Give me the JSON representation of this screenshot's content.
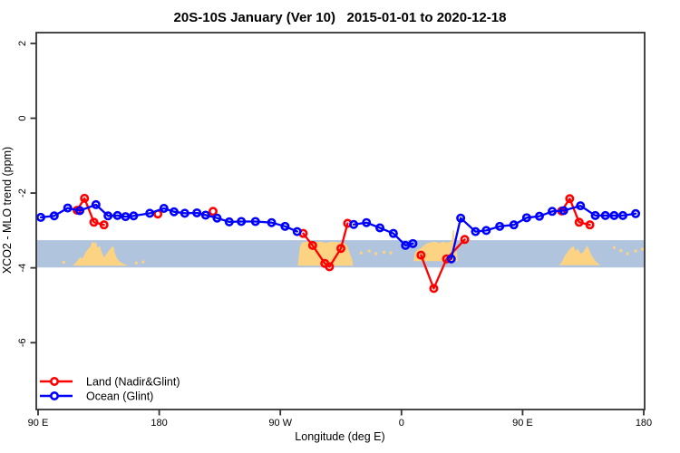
{
  "title": "20S-10S January (Ver 10)   2015-01-01 to 2020-12-18",
  "legend": {
    "items": [
      {
        "label": "Land (Nadir&Glint)",
        "color": "#ff0000"
      },
      {
        "label": "Ocean (Glint)",
        "color": "#0000ff"
      }
    ]
  },
  "colors": {
    "land": "#ff0000",
    "ocean": "#0000ff",
    "band": "#b0c4de",
    "density": "#fbd382",
    "axis": "#333333"
  },
  "chart_data": {
    "type": "line",
    "title": "20S-10S January (Ver 10)   2015-01-01 to 2020-12-18",
    "xlabel": "Longitude (deg E)",
    "ylabel": "XCO2 - MLO trend (ppm)",
    "x_axis": {
      "note": "longitude axis runs 90E eastward around the globe; 90E-180 segment repeated at right edge",
      "range": [
        90,
        540
      ],
      "ticks": [
        90,
        180,
        270,
        360,
        450,
        540
      ],
      "tick_labels": [
        "90 E",
        "180",
        "90 W",
        "0",
        "90 E",
        "180"
      ]
    },
    "y_axis": {
      "range": [
        2.3,
        -7.8
      ],
      "ticks": [
        2,
        0,
        -2,
        -4,
        -6
      ],
      "tick_labels": [
        "2",
        "0",
        "-2",
        "-4",
        "-6"
      ]
    },
    "band": {
      "y_top": -3.26,
      "y_bottom": -3.99,
      "color": "#b0c4de"
    },
    "density_regions": [
      [
        [
          116,
          -3.94
        ],
        [
          119,
          -3.82
        ],
        [
          121,
          -3.72
        ],
        [
          123,
          -3.75
        ],
        [
          125,
          -3.6
        ],
        [
          127,
          -3.5
        ],
        [
          129,
          -3.42
        ],
        [
          130,
          -3.3
        ],
        [
          132,
          -3.34
        ],
        [
          133,
          -3.3
        ],
        [
          134,
          -3.45
        ],
        [
          136,
          -3.42
        ],
        [
          137,
          -3.56
        ],
        [
          139,
          -3.72
        ],
        [
          141,
          -3.62
        ],
        [
          143,
          -3.52
        ],
        [
          145,
          -3.44
        ],
        [
          146,
          -3.42
        ],
        [
          147,
          -3.6
        ],
        [
          149,
          -3.77
        ],
        [
          151,
          -3.84
        ],
        [
          154,
          -3.9
        ],
        [
          157,
          -3.94
        ]
      ],
      [
        [
          283,
          -3.94
        ],
        [
          284.5,
          -3.45
        ],
        [
          286,
          -3.32
        ],
        [
          289,
          -3.3
        ],
        [
          295,
          -3.31
        ],
        [
          300,
          -3.3
        ],
        [
          304,
          -3.33
        ],
        [
          308,
          -3.3
        ],
        [
          313,
          -3.31
        ],
        [
          317,
          -3.33
        ],
        [
          319.5,
          -3.4
        ],
        [
          321.5,
          -3.6
        ],
        [
          323.5,
          -3.8
        ],
        [
          324,
          -3.94
        ]
      ],
      [
        [
          369,
          -3.82
        ],
        [
          370,
          -3.6
        ],
        [
          372,
          -3.52
        ],
        [
          374,
          -3.48
        ],
        [
          376,
          -3.42
        ],
        [
          378,
          -3.36
        ],
        [
          381,
          -3.32
        ],
        [
          385,
          -3.3
        ],
        [
          388,
          -3.34
        ],
        [
          391,
          -3.3
        ],
        [
          394,
          -3.33
        ],
        [
          396,
          -3.3
        ],
        [
          397.5,
          -3.28
        ],
        [
          398,
          -3.0
        ],
        [
          398.8,
          -2.97
        ],
        [
          399.5,
          -3.25
        ],
        [
          400.5,
          -3.5
        ],
        [
          401.5,
          -3.68
        ],
        [
          402,
          -3.82
        ]
      ],
      [
        [
          477,
          -3.93
        ],
        [
          479,
          -3.85
        ],
        [
          481,
          -3.7
        ],
        [
          483,
          -3.6
        ],
        [
          485,
          -3.5
        ],
        [
          486.5,
          -3.45
        ],
        [
          488,
          -3.42
        ],
        [
          489.5,
          -3.55
        ],
        [
          491,
          -3.48
        ],
        [
          493,
          -3.62
        ],
        [
          495,
          -3.58
        ],
        [
          497,
          -3.46
        ],
        [
          498,
          -3.4
        ],
        [
          499.5,
          -3.52
        ],
        [
          501,
          -3.65
        ],
        [
          503,
          -3.76
        ],
        [
          505,
          -3.85
        ],
        [
          508,
          -3.93
        ]
      ]
    ],
    "density_flecks": [
      [
        109,
        -3.85
      ],
      [
        163,
        -3.87
      ],
      [
        168,
        -3.84
      ],
      [
        330,
        -3.6
      ],
      [
        336,
        -3.55
      ],
      [
        341,
        -3.62
      ],
      [
        347,
        -3.58
      ],
      [
        352,
        -3.6
      ],
      [
        388,
        -3.45
      ],
      [
        518,
        -3.46
      ],
      [
        523,
        -3.54
      ],
      [
        528,
        -3.62
      ],
      [
        534,
        -3.55
      ],
      [
        539,
        -3.5
      ]
    ],
    "series": [
      {
        "name": "Land (Nadir&Glint)",
        "color": "#ff0000",
        "segments": [
          [
            [
              119,
              -2.46
            ],
            [
              124.5,
              -2.14
            ],
            [
              131.5,
              -2.78
            ],
            [
              139,
              -2.85
            ]
          ],
          [
            [
              179,
              -2.56
            ]
          ],
          [
            [
              220,
              -2.49
            ]
          ],
          [
            [
              287,
              -3.08
            ],
            [
              294,
              -3.4
            ],
            [
              303,
              -3.88
            ],
            [
              306.5,
              -3.97
            ],
            [
              315,
              -3.48
            ],
            [
              320,
              -2.81
            ]
          ],
          [
            [
              374.5,
              -3.66
            ],
            [
              384,
              -4.55
            ],
            [
              393.5,
              -3.76
            ],
            [
              407,
              -3.24
            ]
          ],
          [
            [
              479,
              -2.48
            ],
            [
              485,
              -2.15
            ],
            [
              492,
              -2.78
            ],
            [
              500,
              -2.85
            ]
          ]
        ]
      },
      {
        "name": "Ocean (Glint)",
        "color": "#0000ff",
        "segments": [
          [
            [
              92,
              -2.65
            ],
            [
              102,
              -2.61
            ],
            [
              112,
              -2.4
            ],
            [
              121,
              -2.47
            ],
            [
              133,
              -2.31
            ],
            [
              142,
              -2.61
            ],
            [
              149,
              -2.6
            ],
            [
              155,
              -2.63
            ],
            [
              161,
              -2.61
            ],
            [
              173,
              -2.54
            ],
            [
              183.5,
              -2.41
            ],
            [
              191,
              -2.5
            ],
            [
              199,
              -2.54
            ],
            [
              208,
              -2.53
            ],
            [
              214.5,
              -2.59
            ],
            [
              223,
              -2.67
            ],
            [
              232,
              -2.77
            ],
            [
              241,
              -2.76
            ],
            [
              251.5,
              -2.76
            ],
            [
              263.5,
              -2.79
            ],
            [
              273.5,
              -2.89
            ],
            [
              282.5,
              -3.03
            ]
          ],
          [
            [
              324.5,
              -2.84
            ],
            [
              334,
              -2.79
            ],
            [
              344,
              -2.93
            ],
            [
              354,
              -3.08
            ],
            [
              363,
              -3.4
            ],
            [
              368.5,
              -3.35
            ]
          ],
          [
            [
              397,
              -3.76
            ],
            [
              404,
              -2.67
            ],
            [
              415,
              -3.03
            ],
            [
              423,
              -3.0
            ],
            [
              433,
              -2.89
            ],
            [
              443.5,
              -2.85
            ],
            [
              453,
              -2.66
            ],
            [
              462.5,
              -2.62
            ],
            [
              472,
              -2.49
            ],
            [
              480.5,
              -2.47
            ],
            [
              493,
              -2.34
            ],
            [
              504,
              -2.6
            ],
            [
              511.5,
              -2.6
            ],
            [
              518,
              -2.6
            ],
            [
              524.5,
              -2.6
            ],
            [
              534,
              -2.55
            ]
          ]
        ]
      }
    ]
  }
}
